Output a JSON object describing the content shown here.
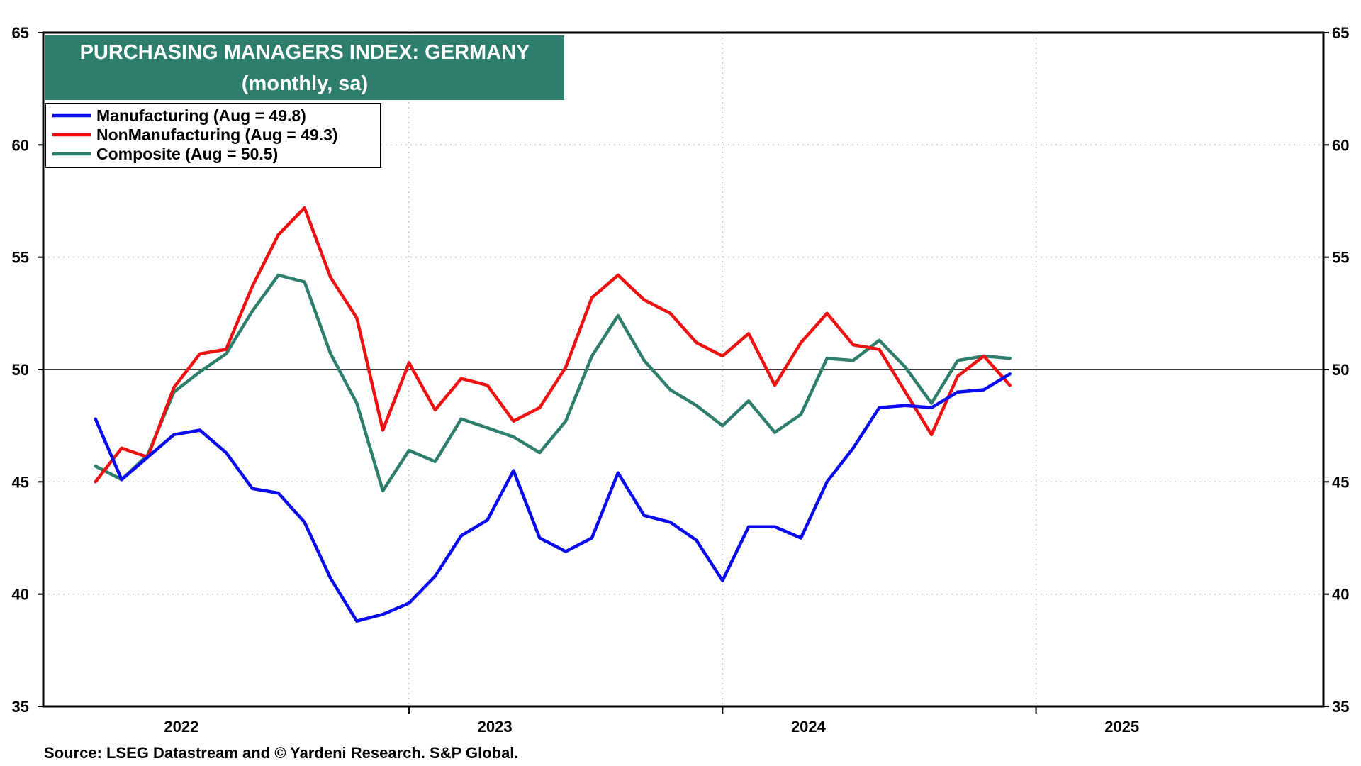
{
  "chart_data": {
    "type": "line",
    "title": "PURCHASING MANAGERS INDEX: GERMANY",
    "subtitle": "(monthly, sa)",
    "source": "Source: LSEG Datastream and © Yardeni Research. S&P Global.",
    "ylim": [
      35,
      65
    ],
    "yticks": [
      "35",
      "40",
      "45",
      "50",
      "55",
      "60",
      "65"
    ],
    "reference_line": 50,
    "year_labels": [
      {
        "label": "2022",
        "year": 2022
      },
      {
        "label": "2023",
        "year": 2023
      },
      {
        "label": "2024",
        "year": 2024
      },
      {
        "label": "2025",
        "year": 2025
      }
    ],
    "x_start": "2021-11",
    "x_end": "2025-12",
    "start_month": "2022-01",
    "grid": true,
    "legend_position": "top-left",
    "series": [
      {
        "name": "Manufacturing (Aug = 49.8)",
        "color": "#0a0aee",
        "values": [
          47.8,
          45.1,
          46.1,
          47.1,
          47.3,
          46.3,
          44.7,
          44.5,
          43.2,
          40.7,
          38.8,
          39.1,
          39.6,
          40.8,
          42.6,
          43.3,
          45.5,
          42.5,
          41.9,
          42.5,
          45.4,
          43.5,
          43.2,
          42.4,
          40.6,
          43.0,
          43.0,
          42.5,
          45.0,
          46.5,
          48.3,
          48.4,
          48.3,
          49.0,
          49.1,
          49.8
        ]
      },
      {
        "name": "NonManufacturing (Aug = 49.3)",
        "color": "#ee1111",
        "values": [
          45.0,
          46.5,
          46.1,
          49.2,
          50.7,
          50.9,
          53.7,
          56.0,
          57.2,
          54.1,
          52.3,
          47.3,
          50.3,
          48.2,
          49.6,
          49.3,
          47.7,
          48.3,
          50.1,
          53.2,
          54.2,
          53.1,
          52.5,
          51.2,
          50.6,
          51.6,
          49.3,
          51.2,
          52.5,
          51.1,
          50.9,
          49.0,
          47.1,
          49.7,
          50.6,
          49.3
        ]
      },
      {
        "name": "Composite (Aug = 50.5)",
        "color": "#2e7e6e",
        "values": [
          45.7,
          45.1,
          46.2,
          49.0,
          49.9,
          50.7,
          52.6,
          54.2,
          53.9,
          50.7,
          48.5,
          44.6,
          46.4,
          45.9,
          47.8,
          47.4,
          47.0,
          46.3,
          47.7,
          50.6,
          52.4,
          50.4,
          49.1,
          48.4,
          47.5,
          48.6,
          47.2,
          48.0,
          50.5,
          50.4,
          51.3,
          50.1,
          48.5,
          50.4,
          50.6,
          50.5
        ]
      }
    ]
  }
}
